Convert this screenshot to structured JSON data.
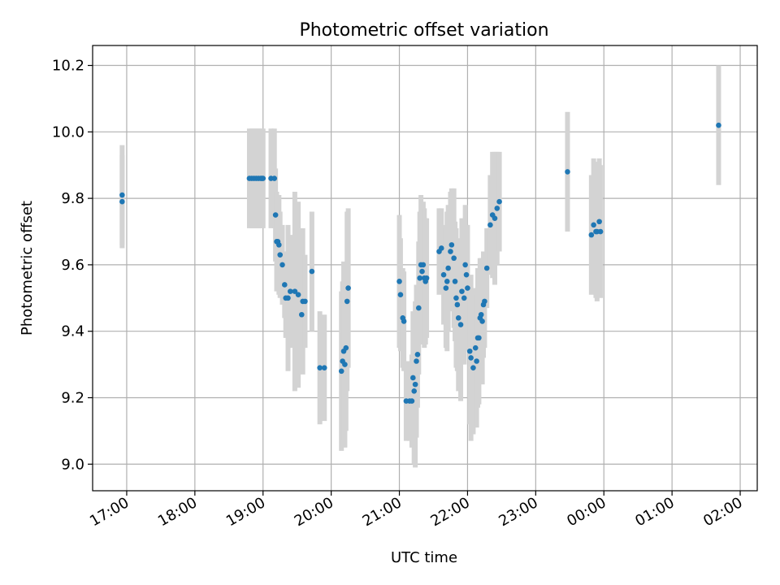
{
  "chart_data": {
    "type": "scatter",
    "title": "Photometric offset variation",
    "xlabel": "UTC time",
    "ylabel": "Photometric offset",
    "xlim": [
      "16:30",
      "02:15"
    ],
    "ylim": [
      8.92,
      10.26
    ],
    "grid": true,
    "x_ticks": [
      "17:00",
      "18:00",
      "19:00",
      "20:00",
      "21:00",
      "22:00",
      "23:00",
      "00:00",
      "01:00",
      "02:00"
    ],
    "y_ticks": [
      "9.0",
      "9.2",
      "9.4",
      "9.6",
      "9.8",
      "10.0",
      "10.2"
    ],
    "colors": {
      "point": "#1f77b4",
      "errorbar": "#d3d3d3",
      "grid": "#b0b0b0"
    },
    "series": [
      {
        "x": [
          "16:56",
          "16:56",
          "18:48",
          "18:50",
          "18:52",
          "18:54",
          "18:56",
          "18:58",
          "18:59",
          "19:00",
          "19:07",
          "19:10",
          "19:11",
          "19:12",
          "19:13",
          "19:14",
          "19:15",
          "19:17",
          "19:19",
          "19:20",
          "19:22",
          "19:24",
          "19:28",
          "19:31",
          "19:34",
          "19:35",
          "19:37",
          "19:43",
          "19:50",
          "19:54",
          "20:09",
          "20:10",
          "20:11",
          "20:12",
          "20:13",
          "20:14",
          "20:15",
          "21:00",
          "21:01",
          "21:03",
          "21:04",
          "21:06",
          "21:09",
          "21:11",
          "21:12",
          "21:13",
          "21:14",
          "21:15",
          "21:16",
          "21:17",
          "21:18",
          "21:19",
          "21:20",
          "21:21",
          "21:22",
          "21:23",
          "21:24",
          "21:35",
          "21:37",
          "21:39",
          "21:41",
          "21:42",
          "21:43",
          "21:45",
          "21:46",
          "21:48",
          "21:49",
          "21:50",
          "21:51",
          "21:52",
          "21:54",
          "21:55",
          "21:57",
          "21:58",
          "21:59",
          "22:00",
          "22:02",
          "22:03",
          "22:05",
          "22:07",
          "22:08",
          "22:09",
          "22:10",
          "22:11",
          "22:12",
          "22:13",
          "22:14",
          "22:15",
          "22:17",
          "22:20",
          "22:22",
          "22:24",
          "22:26",
          "22:28",
          "23:28",
          "23:49",
          "23:51",
          "23:53",
          "23:54",
          "23:56",
          "23:57",
          "01:41"
        ],
        "y": [
          9.81,
          9.79,
          9.86,
          9.86,
          9.86,
          9.86,
          9.86,
          9.86,
          9.86,
          9.86,
          9.86,
          9.86,
          9.75,
          9.67,
          9.67,
          9.66,
          9.63,
          9.6,
          9.54,
          9.5,
          9.5,
          9.52,
          9.52,
          9.51,
          9.45,
          9.49,
          9.49,
          9.58,
          9.29,
          9.29,
          9.28,
          9.31,
          9.34,
          9.3,
          9.35,
          9.49,
          9.53,
          9.55,
          9.51,
          9.44,
          9.43,
          9.19,
          9.19,
          9.19,
          9.26,
          9.22,
          9.24,
          9.31,
          9.33,
          9.47,
          9.56,
          9.6,
          9.58,
          9.6,
          9.56,
          9.55,
          9.56,
          9.64,
          9.65,
          9.57,
          9.53,
          9.55,
          9.59,
          9.64,
          9.66,
          9.62,
          9.55,
          9.5,
          9.48,
          9.44,
          9.42,
          9.52,
          9.5,
          9.6,
          9.57,
          9.53,
          9.34,
          9.32,
          9.29,
          9.35,
          9.31,
          9.38,
          9.38,
          9.44,
          9.45,
          9.43,
          9.48,
          9.49,
          9.59,
          9.72,
          9.75,
          9.74,
          9.77,
          9.79,
          9.88,
          9.69,
          9.72,
          9.7,
          9.7,
          9.73,
          9.7,
          10.02
        ],
        "err": [
          0.15,
          0.14,
          0.15,
          0.15,
          0.15,
          0.15,
          0.15,
          0.15,
          0.15,
          0.15,
          0.15,
          0.15,
          0.14,
          0.15,
          0.14,
          0.15,
          0.13,
          0.12,
          0.1,
          0.12,
          0.22,
          0.17,
          0.3,
          0.28,
          0.17,
          0.22,
          0.14,
          0.18,
          0.17,
          0.16,
          0.24,
          0.24,
          0.27,
          0.25,
          0.25,
          0.27,
          0.24,
          0.2,
          0.17,
          0.15,
          0.15,
          0.12,
          0.12,
          0.14,
          0.2,
          0.22,
          0.25,
          0.23,
          0.16,
          0.2,
          0.2,
          0.21,
          0.19,
          0.19,
          0.21,
          0.19,
          0.18,
          0.13,
          0.12,
          0.15,
          0.18,
          0.21,
          0.19,
          0.18,
          0.17,
          0.21,
          0.18,
          0.21,
          0.2,
          0.22,
          0.23,
          0.22,
          0.2,
          0.18,
          0.15,
          0.19,
          0.22,
          0.25,
          0.2,
          0.18,
          0.2,
          0.21,
          0.2,
          0.18,
          0.17,
          0.19,
          0.16,
          0.14,
          0.12,
          0.15,
          0.19,
          0.2,
          0.17,
          0.15,
          0.18,
          0.18,
          0.2,
          0.2,
          0.21,
          0.19,
          0.2,
          0.18
        ]
      }
    ]
  }
}
